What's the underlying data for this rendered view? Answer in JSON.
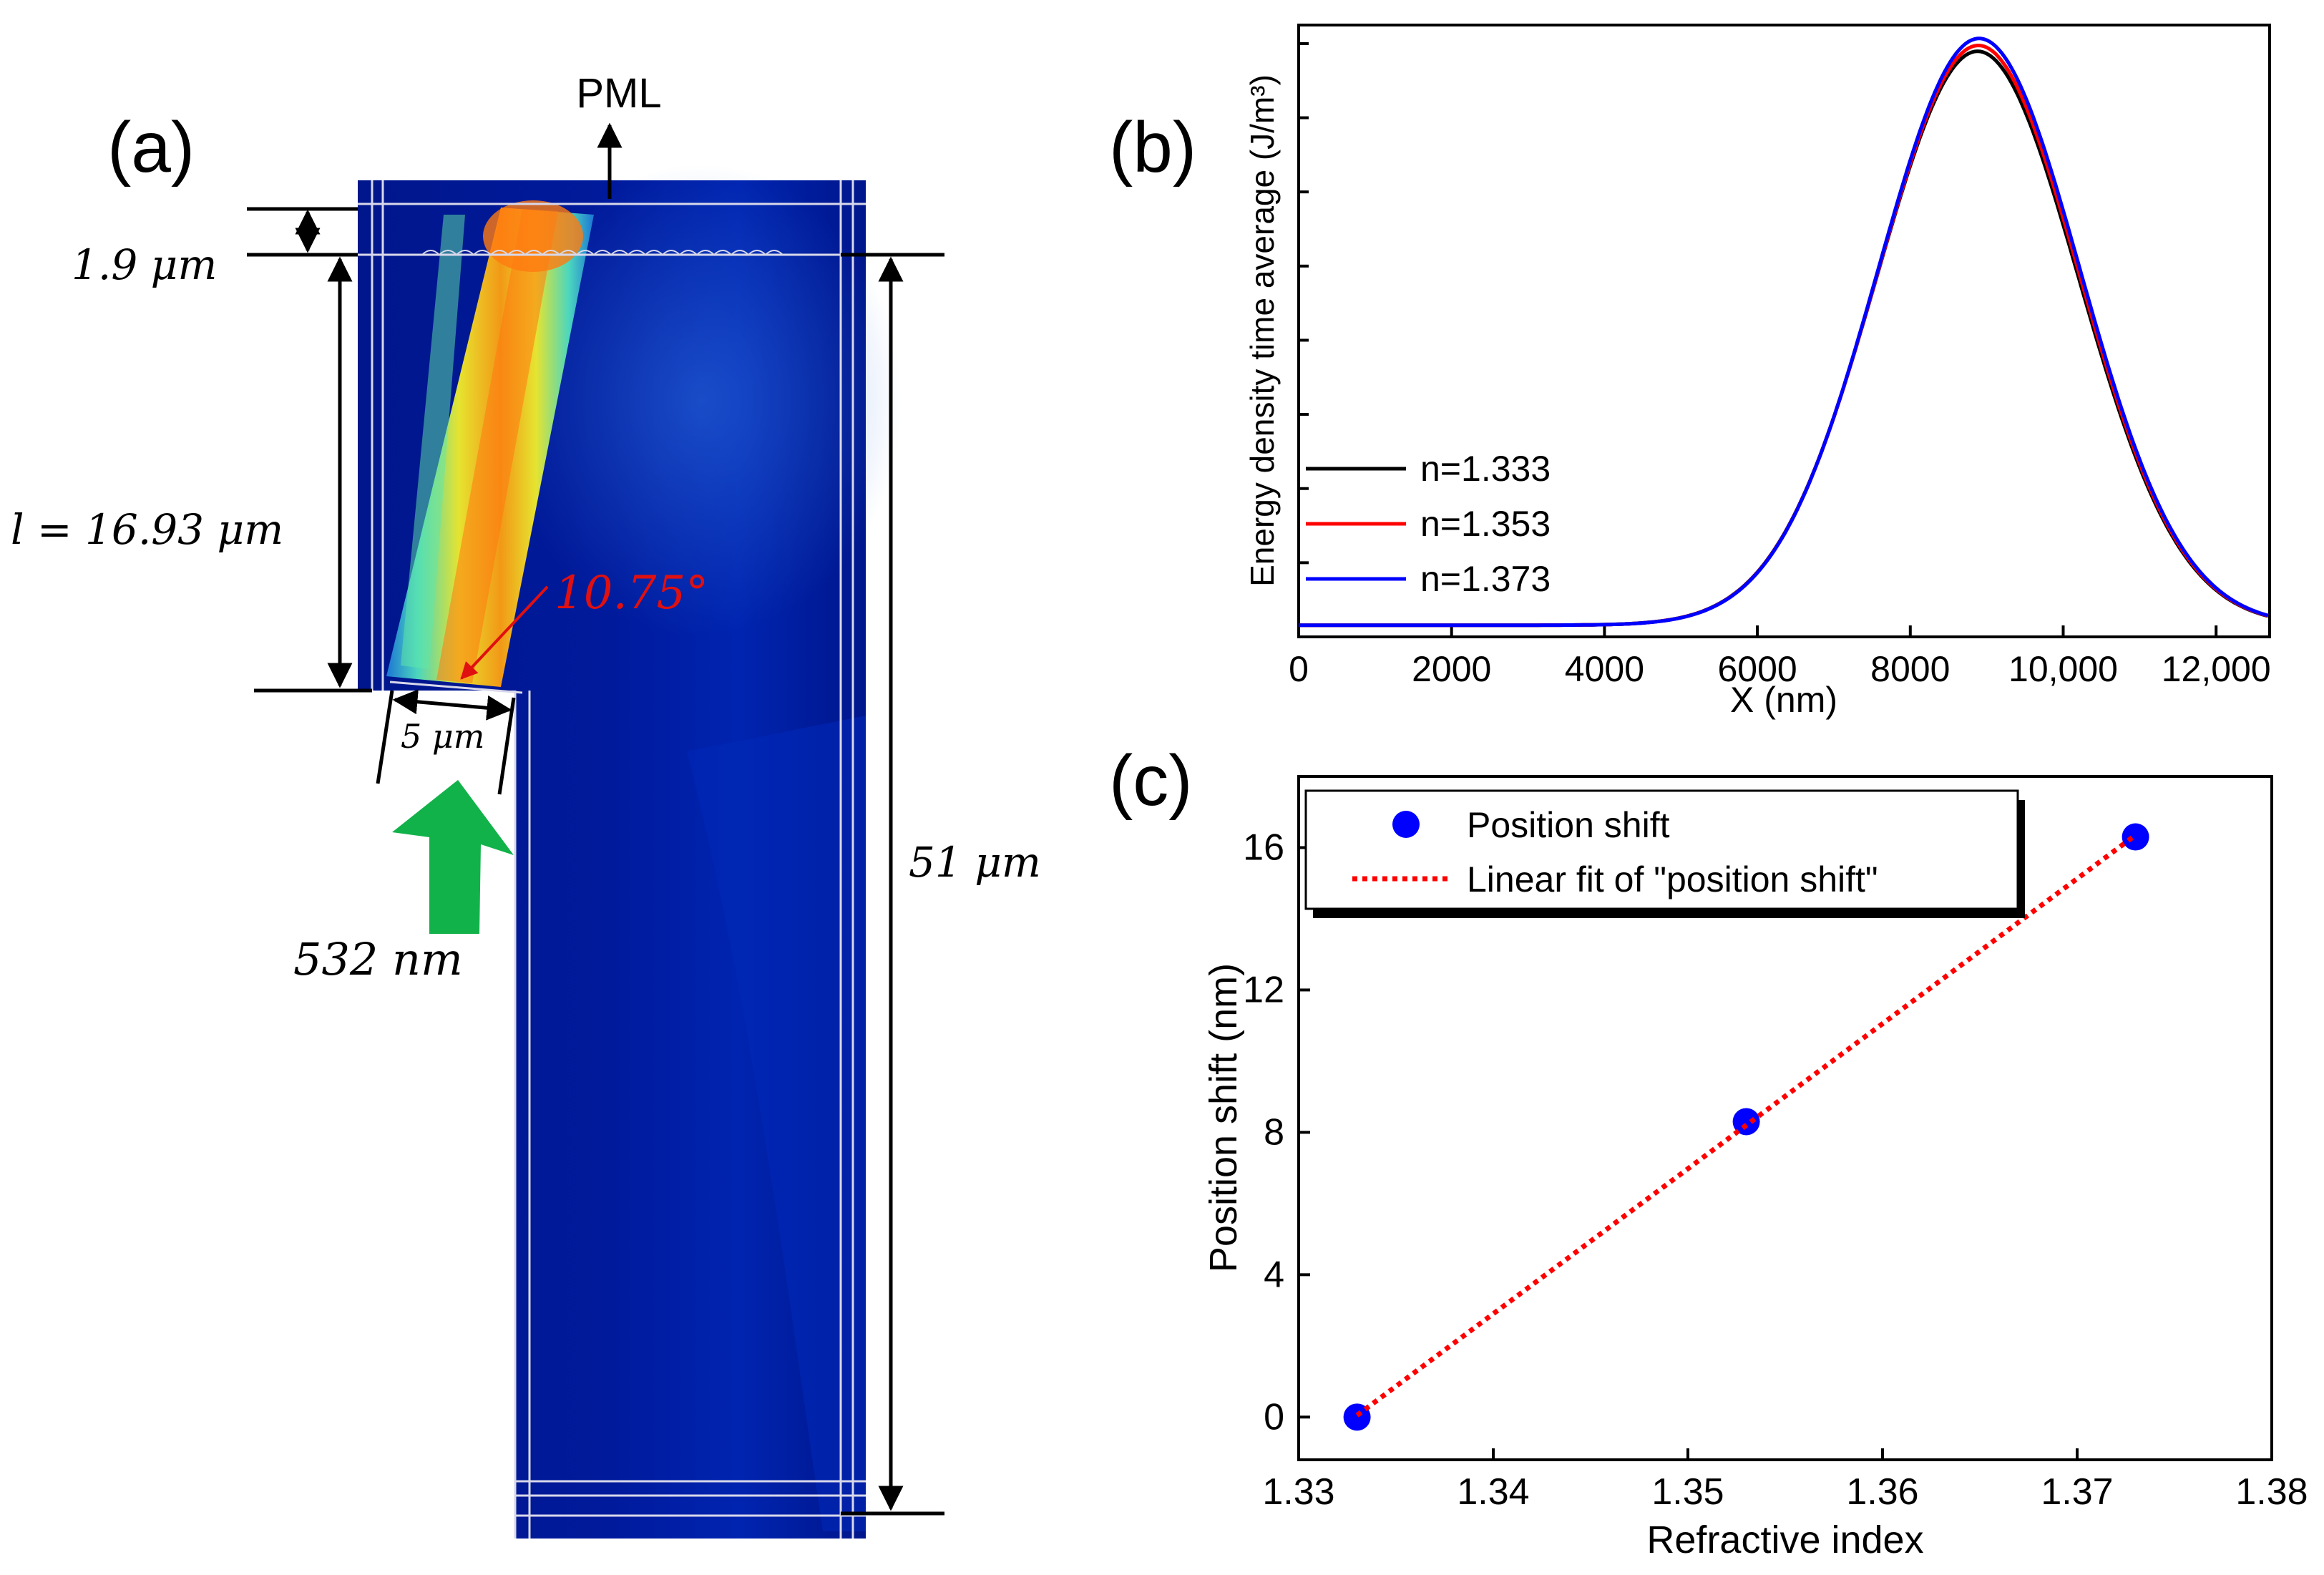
{
  "panel_a": {
    "label": "(a)",
    "pml_label": "PML",
    "dims": {
      "top": "1.9 μm",
      "length": "l = 16.93 μm",
      "height": "51 μm",
      "aperture": "5 μm",
      "wavelength": "532 nm",
      "angle": "10.75°"
    },
    "colors": {
      "field_bg": "#00168c",
      "beam_hot": "#ffb400",
      "arrow": "#12b24a",
      "angle_text": "#e01010"
    }
  },
  "chart_data": [
    {
      "id": "b",
      "panel_label": "(b)",
      "type": "line",
      "title": "",
      "xlabel": "X (nm)",
      "ylabel": "Energy density time average (J/m³)",
      "xlim": [
        0,
        12700
      ],
      "ylim": [
        0,
        1.05
      ],
      "xticks": [
        0,
        2000,
        4000,
        6000,
        8000,
        10000,
        12000
      ],
      "xtick_labels": [
        "0",
        "2000",
        "4000",
        "6000",
        "8000",
        "10,000",
        "12,000"
      ],
      "y_tick_count": 8,
      "y_tick_labels_visible": false,
      "legend_position": "bottom-left",
      "series": [
        {
          "name": "n=1.333",
          "color": "#000000",
          "center": 8880,
          "sigma": 1320,
          "peak": 0.985,
          "base": 0.02
        },
        {
          "name": "n=1.353",
          "color": "#ff0000",
          "center": 8890,
          "sigma": 1320,
          "peak": 0.995,
          "base": 0.02
        },
        {
          "name": "n=1.373",
          "color": "#0000ff",
          "center": 8900,
          "sigma": 1320,
          "peak": 1.007,
          "base": 0.02
        }
      ]
    },
    {
      "id": "c",
      "panel_label": "(c)",
      "type": "scatter",
      "title": "",
      "xlabel": "Refractive index",
      "ylabel": "Position shift (nm)",
      "xlim": [
        1.33,
        1.38
      ],
      "ylim": [
        -1.2,
        18
      ],
      "xticks": [
        1.33,
        1.34,
        1.35,
        1.36,
        1.37,
        1.38
      ],
      "yticks": [
        0,
        4,
        8,
        12,
        16
      ],
      "legend_position": "top-left",
      "series": [
        {
          "name": "Position shift",
          "color": "#0000ff",
          "x": [
            1.333,
            1.353,
            1.373
          ],
          "y": [
            0.0,
            8.3,
            16.3
          ]
        },
        {
          "name": "Linear fit of \"position shift\"",
          "color": "#ff0000",
          "x": [
            1.333,
            1.373
          ],
          "y": [
            0.05,
            16.35
          ]
        }
      ]
    }
  ]
}
